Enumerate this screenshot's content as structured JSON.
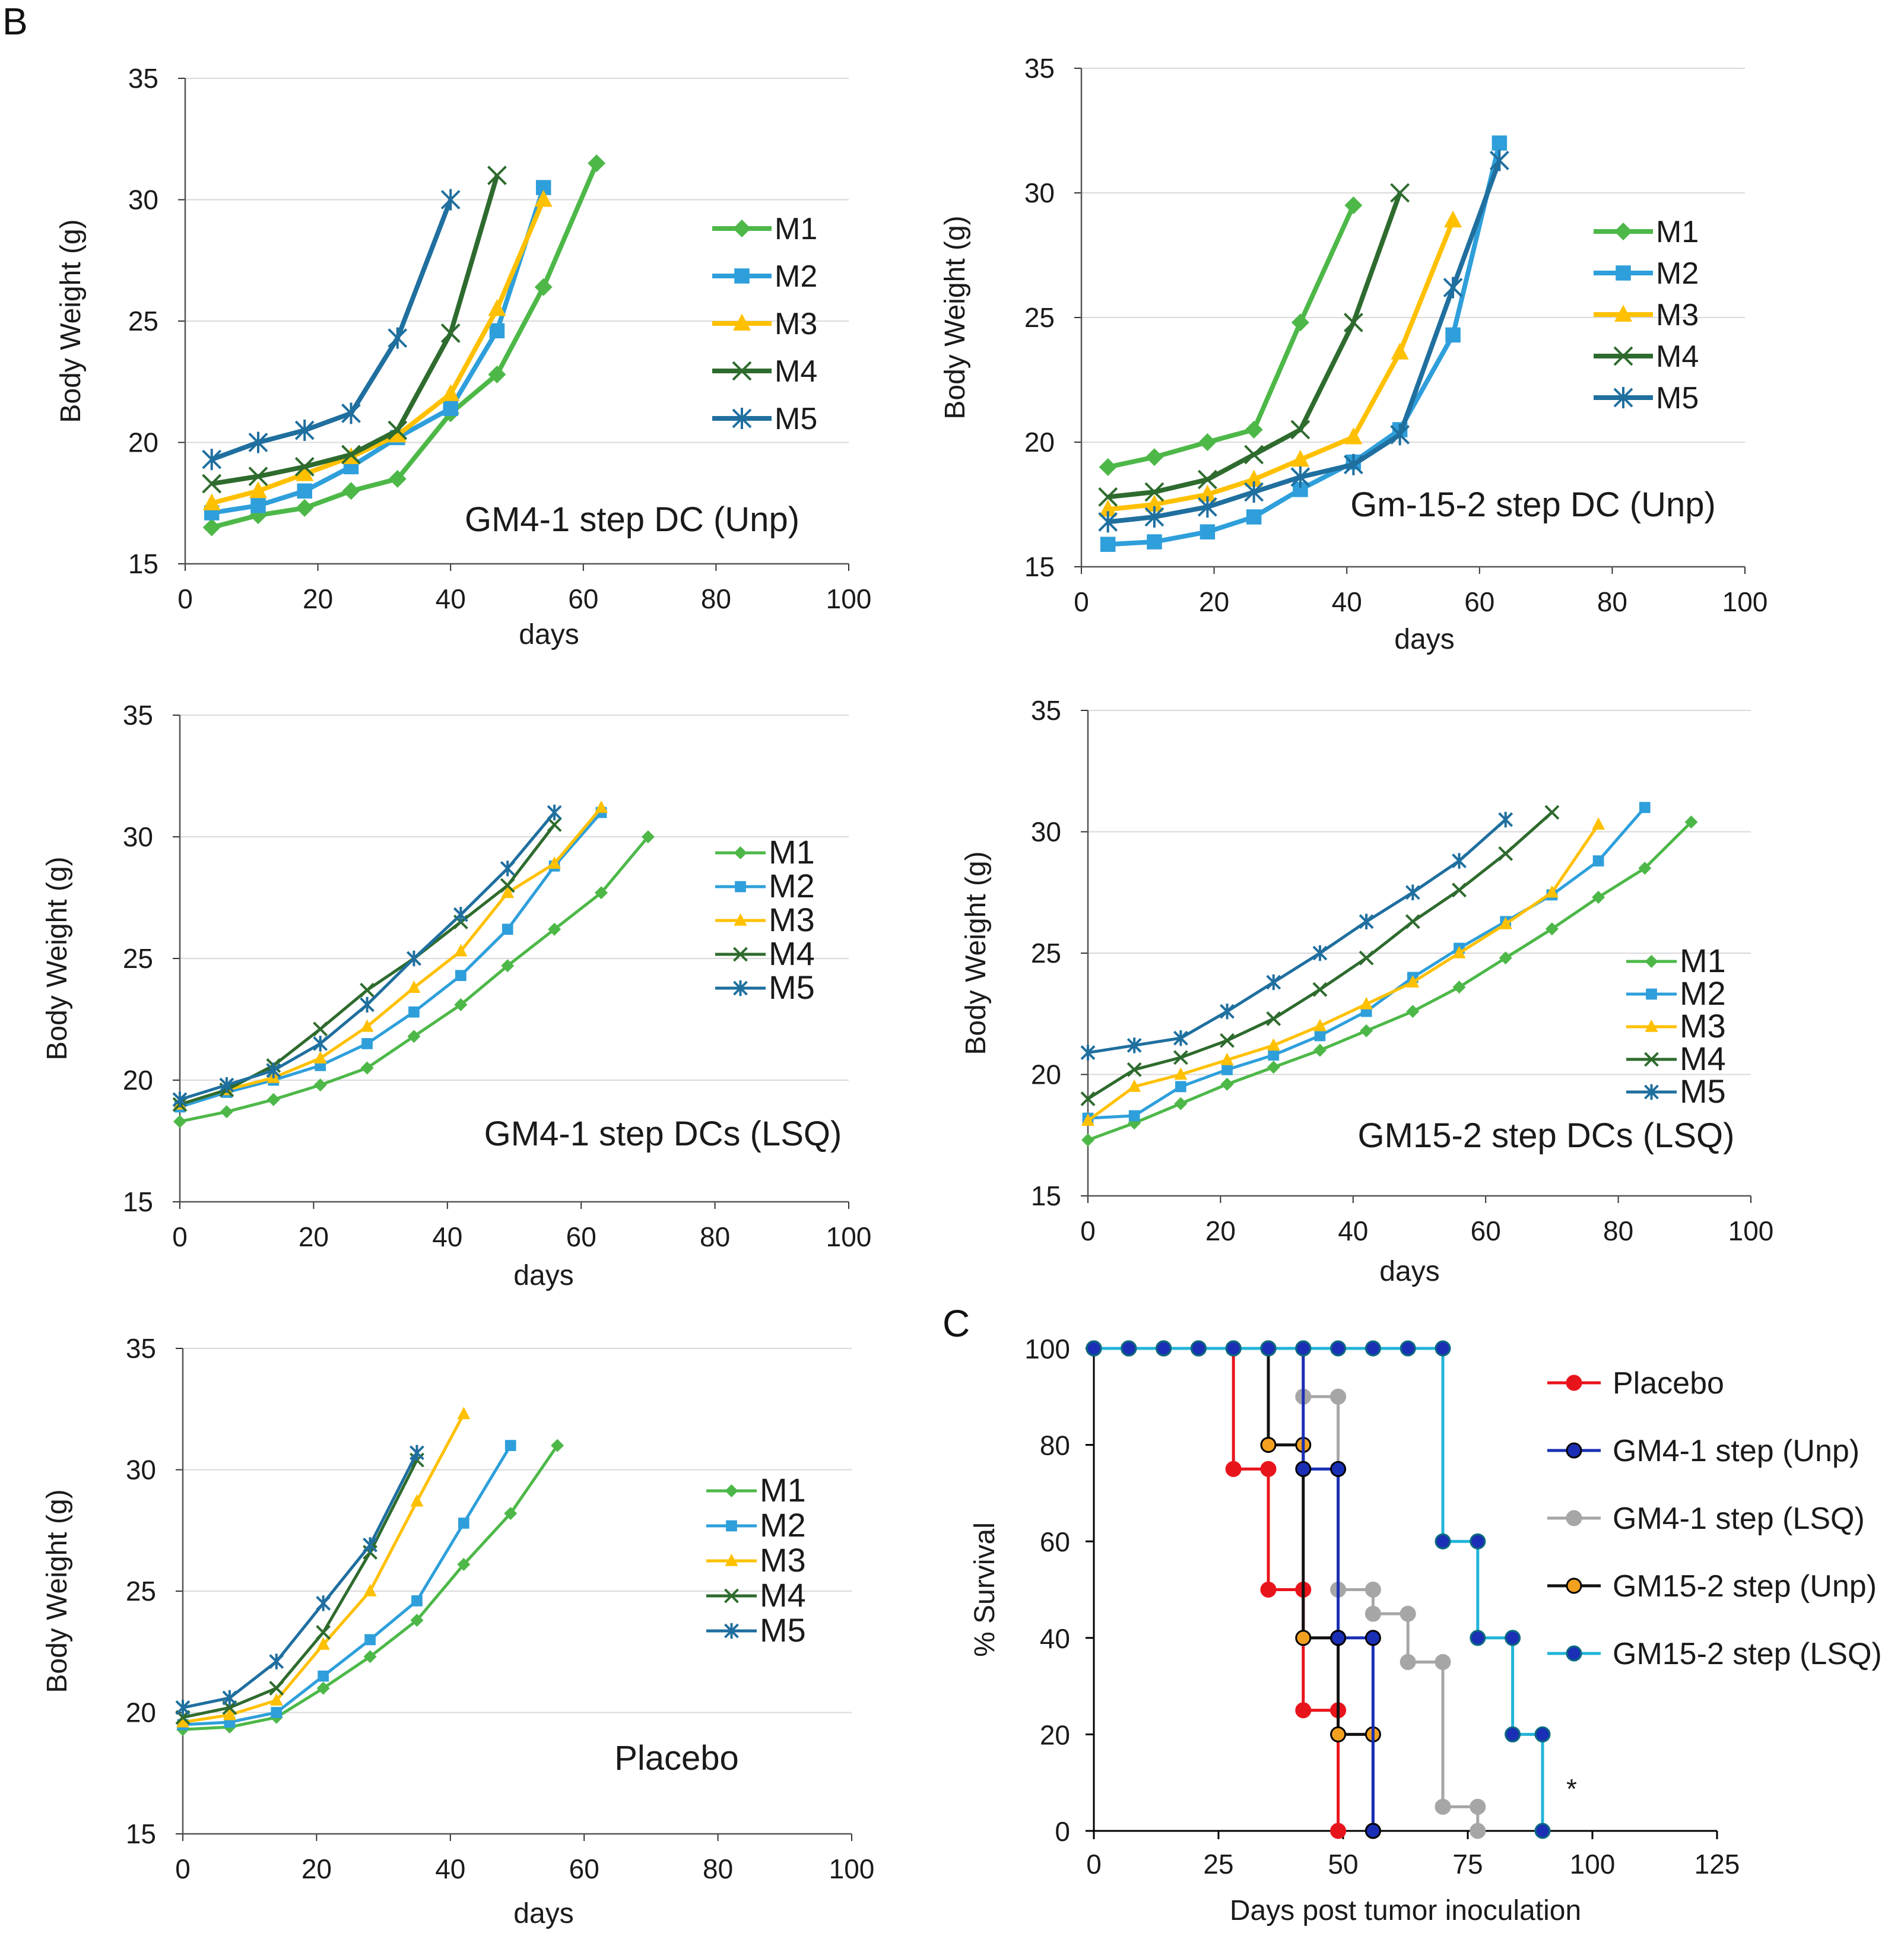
{
  "figure": {
    "label_b": "B",
    "label_c": "C"
  },
  "colors": {
    "M1": "#4db848",
    "M2": "#2e9fdb",
    "M3": "#ffc000",
    "M4": "#2e6b2e",
    "M5": "#1f6f9f",
    "Placebo": "#e8141c",
    "GM4-1 step (Unp)": "#1a2fb5",
    "GM4-1 step (LSQ)": "#a6a6a6",
    "GM15-2 step (Unp)": "#111111",
    "GM15-2 step (LSQ)": "#22b4d8",
    "orange_fill": "#f2a020",
    "navy_fill": "#1a2fb5",
    "grid": "#d9d9d9"
  },
  "chart_data": [
    {
      "type": "line",
      "panel": "B1",
      "title": "GM4-1 step DC (Unp)",
      "xlabel": "days",
      "ylabel": "Body Weight (g)",
      "xlim": [
        0,
        100
      ],
      "ylim": [
        15,
        35
      ],
      "xticks": [
        "0",
        "20",
        "40",
        "60",
        "80",
        "100"
      ],
      "yticks": [
        "15",
        "20",
        "25",
        "30",
        "35"
      ],
      "series": [
        {
          "name": "M1",
          "marker": "diamond",
          "x": [
            4,
            11,
            18,
            25,
            32,
            40,
            47,
            54,
            62
          ],
          "y": [
            16.5,
            17.0,
            17.3,
            18.0,
            18.5,
            21.2,
            22.8,
            26.4,
            31.5
          ]
        },
        {
          "name": "M2",
          "marker": "square",
          "x": [
            4,
            11,
            18,
            25,
            32,
            40,
            47,
            54
          ],
          "y": [
            17.1,
            17.4,
            18.0,
            19.0,
            20.2,
            21.4,
            24.6,
            30.5
          ]
        },
        {
          "name": "M3",
          "marker": "triangle",
          "x": [
            4,
            11,
            18,
            25,
            32,
            40,
            47,
            54
          ],
          "y": [
            17.5,
            18.0,
            18.7,
            19.4,
            20.3,
            22.0,
            25.5,
            30.0
          ]
        },
        {
          "name": "M4",
          "marker": "x",
          "x": [
            4,
            11,
            18,
            25,
            32,
            40,
            47
          ],
          "y": [
            18.3,
            18.6,
            19.0,
            19.5,
            20.5,
            24.5,
            31.0
          ]
        },
        {
          "name": "M5",
          "marker": "star",
          "x": [
            4,
            11,
            18,
            25,
            32,
            40
          ],
          "y": [
            19.3,
            20.0,
            20.5,
            21.2,
            24.3,
            30.0
          ]
        }
      ]
    },
    {
      "type": "line",
      "panel": "B2",
      "title": "Gm-15-2 step DC (Unp)",
      "xlabel": "days",
      "ylabel": "Body Weight (g)",
      "xlim": [
        0,
        100
      ],
      "ylim": [
        15,
        35
      ],
      "xticks": [
        "0",
        "20",
        "40",
        "60",
        "80",
        "100"
      ],
      "yticks": [
        "15",
        "20",
        "25",
        "30",
        "35"
      ],
      "series": [
        {
          "name": "M1",
          "marker": "diamond",
          "x": [
            4,
            11,
            19,
            26,
            33,
            41
          ],
          "y": [
            19.0,
            19.4,
            20.0,
            20.5,
            24.8,
            29.5
          ]
        },
        {
          "name": "M2",
          "marker": "square",
          "x": [
            4,
            11,
            19,
            26,
            33,
            41,
            48,
            56,
            63
          ],
          "y": [
            15.9,
            16.0,
            16.4,
            17.0,
            18.1,
            19.2,
            20.5,
            24.3,
            32.0
          ]
        },
        {
          "name": "M3",
          "marker": "triangle",
          "x": [
            4,
            11,
            19,
            26,
            33,
            41,
            48,
            56
          ],
          "y": [
            17.3,
            17.5,
            17.9,
            18.5,
            19.3,
            20.2,
            23.6,
            28.9
          ]
        },
        {
          "name": "M4",
          "marker": "x",
          "x": [
            4,
            11,
            19,
            26,
            33,
            41,
            48
          ],
          "y": [
            17.8,
            18.0,
            18.5,
            19.5,
            20.5,
            24.8,
            30.0
          ]
        },
        {
          "name": "M5",
          "marker": "star",
          "x": [
            4,
            11,
            19,
            26,
            33,
            41,
            48,
            56,
            63
          ],
          "y": [
            16.8,
            17.0,
            17.4,
            18.0,
            18.6,
            19.1,
            20.3,
            26.2,
            31.3
          ]
        }
      ]
    },
    {
      "type": "line",
      "panel": "B3",
      "title": "GM4-1 step DCs (LSQ)",
      "xlabel": "days",
      "ylabel": "Body Weight (g)",
      "xlim": [
        0,
        100
      ],
      "ylim": [
        15,
        35
      ],
      "xticks": [
        "0",
        "20",
        "40",
        "60",
        "80",
        "100"
      ],
      "yticks": [
        "15",
        "20",
        "25",
        "30",
        "35"
      ],
      "series": [
        {
          "name": "M1",
          "marker": "diamond",
          "x": [
            0,
            7,
            14,
            21,
            28,
            35,
            42,
            49,
            56,
            63,
            70
          ],
          "y": [
            18.3,
            18.7,
            19.2,
            19.8,
            20.5,
            21.8,
            23.1,
            24.7,
            26.2,
            27.7,
            30.0
          ]
        },
        {
          "name": "M2",
          "marker": "square",
          "x": [
            0,
            7,
            14,
            21,
            28,
            35,
            42,
            49,
            56,
            63
          ],
          "y": [
            18.9,
            19.5,
            20.0,
            20.6,
            21.5,
            22.8,
            24.3,
            26.2,
            28.8,
            31.0
          ]
        },
        {
          "name": "M3",
          "marker": "triangle",
          "x": [
            0,
            7,
            14,
            21,
            28,
            35,
            42,
            49,
            56,
            63
          ],
          "y": [
            19.0,
            19.6,
            20.1,
            20.9,
            22.2,
            23.8,
            25.3,
            27.7,
            28.9,
            31.2
          ]
        },
        {
          "name": "M4",
          "marker": "x",
          "x": [
            0,
            7,
            14,
            21,
            28,
            35,
            42,
            49,
            56
          ],
          "y": [
            19.0,
            19.6,
            20.6,
            22.1,
            23.7,
            25.0,
            26.5,
            28.0,
            30.5
          ]
        },
        {
          "name": "M5",
          "marker": "star",
          "x": [
            0,
            7,
            14,
            21,
            28,
            35,
            42,
            49,
            56
          ],
          "y": [
            19.2,
            19.8,
            20.4,
            21.5,
            23.1,
            25.0,
            26.8,
            28.7,
            31.0
          ]
        }
      ]
    },
    {
      "type": "line",
      "panel": "B4",
      "title": "GM15-2 step DCs (LSQ)",
      "xlabel": "days",
      "ylabel": "Body Weight (g)",
      "xlim": [
        0,
        100
      ],
      "ylim": [
        15,
        35
      ],
      "xticks": [
        "0",
        "20",
        "40",
        "60",
        "80",
        "100"
      ],
      "yticks": [
        "15",
        "20",
        "25",
        "30",
        "35"
      ],
      "series": [
        {
          "name": "M1",
          "marker": "diamond",
          "x": [
            0,
            7,
            14,
            21,
            28,
            35,
            42,
            49,
            56,
            63,
            70,
            77,
            84,
            91
          ],
          "y": [
            17.3,
            18.0,
            18.8,
            19.6,
            20.3,
            21.0,
            21.8,
            22.6,
            23.6,
            24.8,
            26.0,
            27.3,
            28.5,
            30.4
          ]
        },
        {
          "name": "M2",
          "marker": "square",
          "x": [
            0,
            7,
            14,
            21,
            28,
            35,
            42,
            49,
            56,
            63,
            70,
            77,
            84
          ],
          "y": [
            18.2,
            18.3,
            19.5,
            20.2,
            20.8,
            21.6,
            22.6,
            24.0,
            25.2,
            26.3,
            27.4,
            28.8,
            31.0
          ]
        },
        {
          "name": "M3",
          "marker": "triangle",
          "x": [
            0,
            7,
            14,
            21,
            28,
            35,
            42,
            49,
            56,
            63,
            70,
            77
          ],
          "y": [
            18.1,
            19.5,
            20.0,
            20.6,
            21.2,
            22.0,
            22.9,
            23.8,
            25.0,
            26.2,
            27.5,
            30.3
          ]
        },
        {
          "name": "M4",
          "marker": "x",
          "x": [
            0,
            7,
            14,
            21,
            28,
            35,
            42,
            49,
            56,
            63,
            70
          ],
          "y": [
            19.0,
            20.2,
            20.7,
            21.4,
            22.3,
            23.5,
            24.8,
            26.3,
            27.6,
            29.1,
            30.8
          ]
        },
        {
          "name": "M5",
          "marker": "star",
          "x": [
            0,
            7,
            14,
            21,
            28,
            35,
            42,
            49,
            56,
            63
          ],
          "y": [
            20.9,
            21.2,
            21.5,
            22.6,
            23.8,
            25.0,
            26.3,
            27.5,
            28.8,
            30.5
          ]
        }
      ]
    },
    {
      "type": "line",
      "panel": "B5",
      "title": "Placebo",
      "xlabel": "days",
      "ylabel": "Body Weight (g)",
      "xlim": [
        0,
        100
      ],
      "ylim": [
        15,
        35
      ],
      "xticks": [
        "0",
        "20",
        "40",
        "60",
        "80",
        "100"
      ],
      "yticks": [
        "15",
        "20",
        "25",
        "30",
        "35"
      ],
      "series": [
        {
          "name": "M1",
          "marker": "diamond",
          "x": [
            0,
            7,
            14,
            21,
            28,
            35,
            42,
            49,
            56
          ],
          "y": [
            19.3,
            19.4,
            19.8,
            21.0,
            22.3,
            23.8,
            26.1,
            28.2,
            31.0
          ]
        },
        {
          "name": "M2",
          "marker": "square",
          "x": [
            0,
            7,
            14,
            21,
            28,
            35,
            42,
            49
          ],
          "y": [
            19.5,
            19.6,
            20.0,
            21.5,
            23.0,
            24.6,
            27.8,
            31.0
          ]
        },
        {
          "name": "M3",
          "marker": "triangle",
          "x": [
            0,
            7,
            14,
            21,
            28,
            35,
            42
          ],
          "y": [
            19.6,
            19.9,
            20.5,
            22.8,
            25.0,
            28.7,
            32.3
          ]
        },
        {
          "name": "M4",
          "marker": "x",
          "x": [
            0,
            7,
            14,
            21,
            28,
            35
          ],
          "y": [
            19.8,
            20.2,
            21.0,
            23.3,
            26.6,
            30.4
          ]
        },
        {
          "name": "M5",
          "marker": "star",
          "x": [
            0,
            7,
            14,
            21,
            28,
            35
          ],
          "y": [
            20.2,
            20.6,
            22.1,
            24.5,
            26.9,
            30.7
          ]
        }
      ]
    },
    {
      "type": "step",
      "panel": "C",
      "xlabel": "Days post tumor inoculation",
      "ylabel": "% Survival",
      "xlim": [
        0,
        125
      ],
      "ylim": [
        0,
        100
      ],
      "xticks": [
        "0",
        "25",
        "50",
        "75",
        "100",
        "125"
      ],
      "yticks": [
        "0",
        "20",
        "40",
        "60",
        "80",
        "100"
      ],
      "significance": "*",
      "series": [
        {
          "name": "Placebo",
          "x": [
            0,
            28,
            35,
            42,
            49
          ],
          "y": [
            100,
            75,
            50,
            25,
            0
          ]
        },
        {
          "name": "GM4-1 step (Unp)",
          "x": [
            0,
            42,
            49,
            56
          ],
          "y": [
            100,
            75,
            40,
            0
          ]
        },
        {
          "name": "GM4-1 step (LSQ)",
          "x": [
            0,
            42,
            49,
            56,
            63,
            70,
            77
          ],
          "y": [
            100,
            90,
            50,
            45,
            35,
            5,
            0
          ]
        },
        {
          "name": "GM15-2 step (Unp)",
          "x": [
            0,
            35,
            42,
            49,
            56
          ],
          "y": [
            100,
            80,
            40,
            20,
            0
          ]
        },
        {
          "name": "GM15-2 step (LSQ)",
          "x": [
            0,
            70,
            77,
            84,
            90
          ],
          "y": [
            100,
            60,
            40,
            20,
            0
          ]
        }
      ]
    }
  ]
}
